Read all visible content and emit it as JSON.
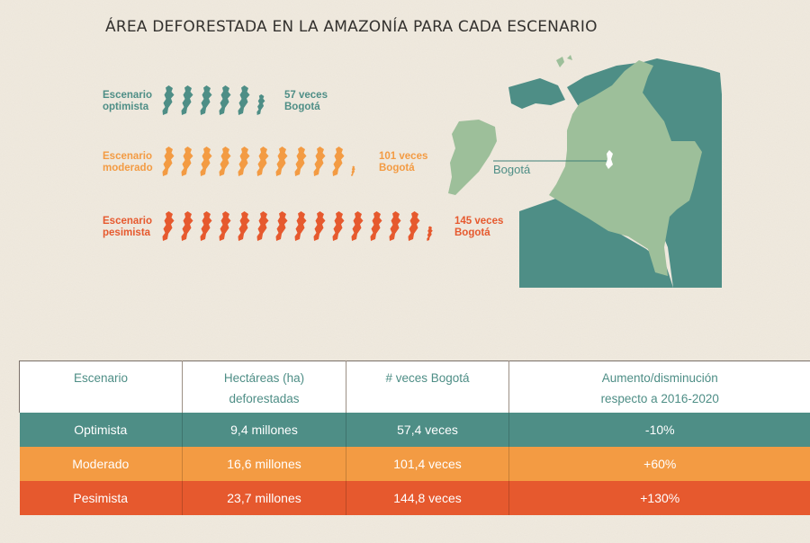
{
  "title": "ÁREA DEFORESTADA EN LA AMAZONÍA PARA CADA ESCENARIO",
  "colors": {
    "background": "#f1ebe0",
    "optimista": "#4e8e86",
    "moderado": "#f39b43",
    "pesimista": "#e6592e",
    "map_land": "#9dbf9a",
    "map_neighbors": "#4e8e86"
  },
  "chart_data": {
    "type": "bar",
    "unit_icon": "bogota-outline-icon",
    "series": [
      {
        "name_line1": "Escenario",
        "name_line2": "optimista",
        "value": 57,
        "value_line1": "57 veces",
        "value_line2": "Bogotá"
      },
      {
        "name_line1": "Escenario",
        "name_line2": "moderado",
        "value": 101,
        "value_line1": "101 veces",
        "value_line2": "Bogotá"
      },
      {
        "name_line1": "Escenario",
        "name_line2": "pesimista",
        "value": 145,
        "value_line1": "145 veces",
        "value_line2": "Bogotá"
      }
    ],
    "units_per_icon": 10
  },
  "map": {
    "label": "Bogotá"
  },
  "table": {
    "headers": [
      "Escenario",
      "Hectáreas (ha)\ndeforestadas",
      "# veces Bogotá",
      "Aumento/disminución\nrespecto a 2016-2020"
    ],
    "rows": [
      [
        "Optimista",
        "9,4 millones",
        "57,4 veces",
        "-10%"
      ],
      [
        "Moderado",
        "16,6 millones",
        "101,4 veces",
        "+60%"
      ],
      [
        "Pesimista",
        "23,7 millones",
        "144,8 veces",
        "+130%"
      ]
    ]
  }
}
